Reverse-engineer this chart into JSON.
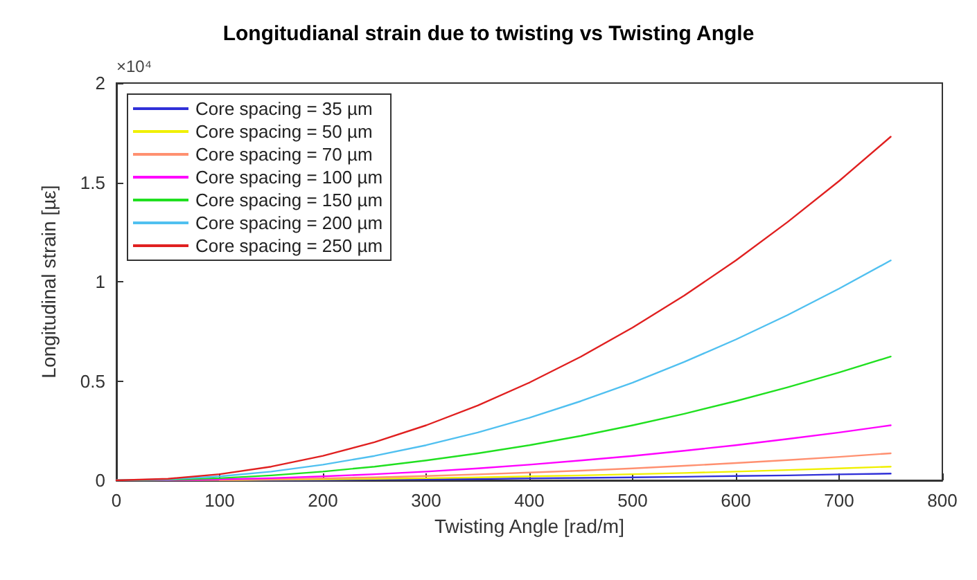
{
  "chart_data": {
    "type": "line",
    "title": "Longitudianal strain due to twisting vs Twisting Angle",
    "xlabel": "Twisting Angle [rad/m]",
    "ylabel": "Longitudinal strain [µε]",
    "annotations": [
      "×10⁴"
    ],
    "x": [
      0,
      50,
      100,
      150,
      200,
      250,
      300,
      350,
      400,
      450,
      500,
      550,
      600,
      650,
      700,
      750
    ],
    "xlim": [
      0,
      800
    ],
    "xticks": [
      0,
      100,
      200,
      300,
      400,
      500,
      600,
      700,
      800
    ],
    "ylim": [
      0,
      2
    ],
    "yticks": [
      0,
      0.5,
      1,
      1.5,
      2
    ],
    "grid": false,
    "legend": "top left",
    "marker": "none",
    "line_style": "solid",
    "series": [
      {
        "name": "Core spacing = 35 µm",
        "color": "#3030d8",
        "values": [
          null,
          null,
          0.001,
          0.001,
          0.002,
          0.004,
          0.005,
          0.007,
          0.01,
          0.012,
          0.015,
          0.018,
          0.022,
          0.025,
          0.03,
          0.034
        ]
      },
      {
        "name": "Core spacing = 50 µm",
        "color": "#f0f000",
        "values": [
          null,
          null,
          0.001,
          0.003,
          0.005,
          0.008,
          0.011,
          0.015,
          0.02,
          0.025,
          0.031,
          0.037,
          0.044,
          0.052,
          0.06,
          0.069
        ]
      },
      {
        "name": "Core spacing = 70 µm",
        "color": "#ff9070",
        "values": [
          0,
          0.001,
          0.002,
          0.005,
          0.01,
          0.015,
          0.022,
          0.03,
          0.039,
          0.049,
          0.06,
          0.073,
          0.087,
          0.102,
          0.118,
          0.136
        ]
      },
      {
        "name": "Core spacing = 100 µm",
        "color": "#ff00ff",
        "values": [
          0,
          0.001,
          0.005,
          0.011,
          0.02,
          0.031,
          0.044,
          0.06,
          0.079,
          0.1,
          0.123,
          0.149,
          0.177,
          0.208,
          0.241,
          0.277
        ]
      },
      {
        "name": "Core spacing = 150 µm",
        "color": "#20e020",
        "values": [
          0,
          0.003,
          0.011,
          0.025,
          0.044,
          0.069,
          0.1,
          0.136,
          0.177,
          0.224,
          0.277,
          0.335,
          0.399,
          0.468,
          0.543,
          0.623
        ]
      },
      {
        "name": "Core spacing = 200 µm",
        "color": "#50c0f0",
        "values": [
          0,
          0.005,
          0.02,
          0.044,
          0.079,
          0.123,
          0.177,
          0.241,
          0.315,
          0.399,
          0.492,
          0.596,
          0.709,
          0.832,
          0.965,
          1.107
        ]
      },
      {
        "name": "Core spacing = 250 µm",
        "color": "#e02020",
        "values": [
          0,
          0.008,
          0.031,
          0.069,
          0.123,
          0.192,
          0.277,
          0.377,
          0.492,
          0.623,
          0.769,
          0.93,
          1.107,
          1.3,
          1.507,
          1.73
        ]
      }
    ]
  }
}
